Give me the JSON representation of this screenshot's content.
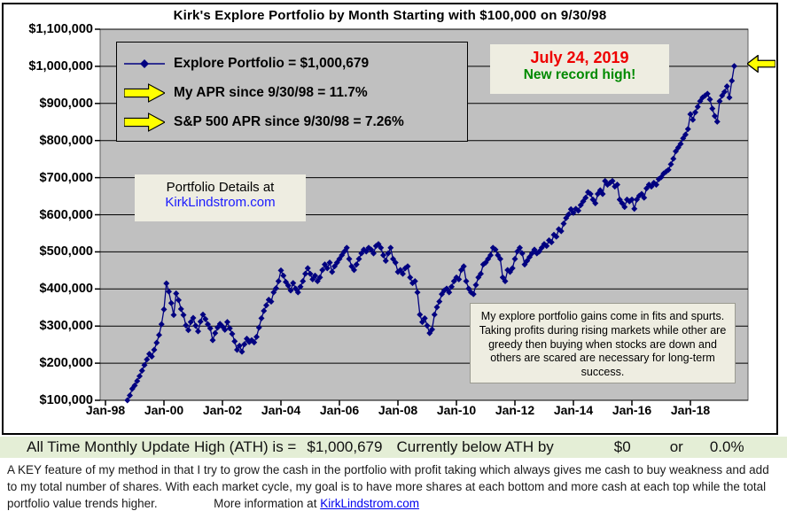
{
  "title": "Kirk's Explore Portfolio by Month Starting with $100,000 on 9/30/98",
  "legend": {
    "explore_line": "Explore Portfolio  =  $1,000,679",
    "my_apr_line": "My APR since 9/30/98 =  11.7%",
    "sp500_apr_line": "S&P 500 APR since 9/30/98 =  7.26%"
  },
  "callout": {
    "date": "July 24, 2019",
    "note": "New record high!"
  },
  "details_box": {
    "line1": "Portfolio Details at",
    "line2": "KirkLindstrom.com"
  },
  "annotation": "My explore portfolio gains come in fits and spurts. Taking profits during rising markets while other are greedy then buying when stocks are down and others are scared are necessary for long-term success.",
  "status_bar": {
    "label": "All Time Monthly Update High (ATH) is =",
    "ath_value": "$1,000,679",
    "below_label": "Currently below ATH by",
    "below_amount": "$0",
    "or_label": "or",
    "below_pct": "0.0%"
  },
  "footer": {
    "text": "A KEY feature of my method in that I try to grow the cash in the portfolio with profit taking which always gives me cash to buy weakness and add to my total number of shares.  With each market cycle, my goal is to have more shares at each bottom and more cash at each top while the total portfolio value trends higher.",
    "more_info": "More information at",
    "link": "KirkLindstrom.com"
  },
  "colors": {
    "line": "#000080",
    "plot_bg": "#c0c0c0",
    "callout_date": "#ee0000",
    "callout_note": "#008a00",
    "arrow_yellow": "#ffff00",
    "status_bg": "#e4eed6"
  },
  "chart_data": {
    "type": "line",
    "title": "Kirk's Explore Portfolio by Month Starting with $100,000 on 9/30/98",
    "series_name": "Explore Portfolio",
    "marker": "diamond",
    "frequency": "monthly",
    "start_month": "Oct-1998",
    "end_month": "Jul-2019",
    "start_value": 100000,
    "final_value": 1000679,
    "my_apr_pct": 11.7,
    "sp500_apr_pct": 7.26,
    "ylim": [
      100000,
      1100000
    ],
    "y_tick_step": 100000,
    "grid": "horizontal",
    "legend_position": "top-left-inside",
    "x_tick_labels": [
      "Jan-98",
      "Jan-00",
      "Jan-02",
      "Jan-04",
      "Jan-06",
      "Jan-08",
      "Jan-10",
      "Jan-12",
      "Jan-14",
      "Jan-16",
      "Jan-18"
    ],
    "y_tick_labels": [
      "$100,000",
      "$200,000",
      "$300,000",
      "$400,000",
      "$500,000",
      "$600,000",
      "$700,000",
      "$800,000",
      "$900,000",
      "$1,000,000",
      "$1,100,000"
    ],
    "values_thousands": [
      100,
      113,
      131,
      140,
      152,
      165,
      180,
      195,
      210,
      225,
      218,
      236,
      255,
      276,
      305,
      345,
      415,
      393,
      362,
      330,
      388,
      370,
      346,
      330,
      302,
      289,
      311,
      322,
      301,
      286,
      312,
      331,
      319,
      305,
      294,
      262,
      281,
      296,
      306,
      299,
      290,
      311,
      294,
      279,
      259,
      236,
      247,
      231,
      251,
      266,
      257,
      262,
      256,
      271,
      296,
      321,
      341,
      356,
      371,
      366,
      391,
      402,
      421,
      450,
      436,
      419,
      409,
      396,
      416,
      401,
      391,
      406,
      421,
      441,
      456,
      441,
      426,
      436,
      421,
      431,
      451,
      466,
      456,
      471,
      446,
      461,
      471,
      481,
      491,
      501,
      511,
      481,
      461,
      451,
      466,
      481,
      496,
      506,
      501,
      511,
      506,
      496,
      516,
      521,
      511,
      491,
      476,
      496,
      511,
      481,
      471,
      446,
      451,
      441,
      456,
      461,
      431,
      416,
      421,
      391,
      331,
      311,
      321,
      301,
      281,
      291,
      331,
      351,
      366,
      386,
      396,
      401,
      391,
      406,
      421,
      431,
      426,
      451,
      461,
      421,
      401,
      391,
      386,
      411,
      431,
      441,
      466,
      471,
      481,
      491,
      511,
      506,
      491,
      481,
      431,
      421,
      451,
      446,
      456,
      481,
      501,
      511,
      496,
      466,
      476,
      486,
      496,
      506,
      496,
      501,
      511,
      521,
      516,
      531,
      526,
      546,
      541,
      561,
      556,
      576,
      591,
      601,
      615,
      605,
      616,
      611,
      626,
      636,
      646,
      661,
      656,
      641,
      631,
      656,
      666,
      656,
      691,
      681,
      686,
      691,
      676,
      681,
      641,
      631,
      621,
      641,
      636,
      641,
      616,
      641,
      651,
      656,
      646,
      671,
      681,
      676,
      686,
      681,
      696,
      701,
      711,
      716,
      721,
      736,
      751,
      771,
      781,
      791,
      806,
      816,
      831,
      871,
      856,
      876,
      891,
      906,
      916,
      921,
      926,
      911,
      886,
      866,
      851,
      906,
      921,
      931,
      946,
      916,
      961,
      1000.679
    ]
  }
}
